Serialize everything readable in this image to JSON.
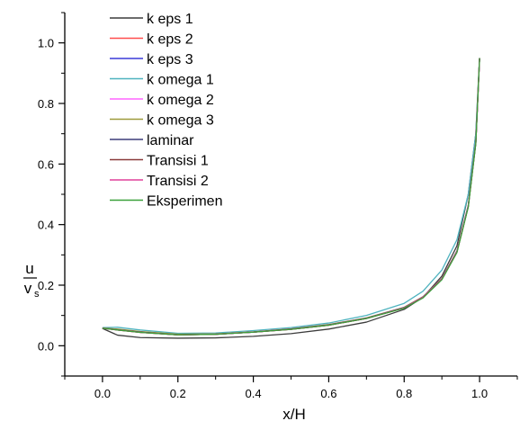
{
  "chart_data": {
    "type": "line",
    "xlabel": "x/H",
    "ylabel": {
      "numerator": "u",
      "denominator_base": "v",
      "denominator_sub": "s"
    },
    "xlim": [
      -0.1,
      1.1
    ],
    "ylim": [
      -0.1,
      1.1
    ],
    "xticks": [
      0.0,
      0.2,
      0.4,
      0.6,
      0.8,
      1.0
    ],
    "yticks": [
      0.0,
      0.2,
      0.4,
      0.6,
      0.8,
      1.0
    ],
    "xtick_labels": [
      "0.0",
      "0.2",
      "0.4",
      "0.6",
      "0.8",
      "1.0"
    ],
    "ytick_labels": [
      "0.0",
      "0.2",
      "0.4",
      "0.6",
      "0.8",
      "1.0"
    ],
    "grid": false,
    "legend_position": "top-left",
    "series": [
      {
        "name": "k eps 1",
        "color": "#3c3c3c",
        "x": [
          0.0,
          0.04,
          0.1,
          0.2,
          0.3,
          0.4,
          0.5,
          0.6,
          0.7,
          0.8,
          0.85,
          0.9,
          0.94,
          0.97,
          0.99,
          1.0
        ],
        "y": [
          0.057,
          0.035,
          0.027,
          0.025,
          0.026,
          0.031,
          0.04,
          0.055,
          0.078,
          0.12,
          0.16,
          0.23,
          0.33,
          0.5,
          0.7,
          0.95
        ]
      },
      {
        "name": "k eps 2",
        "color": "#ff4d4d",
        "x": [
          0.0,
          0.04,
          0.1,
          0.2,
          0.3,
          0.4,
          0.5,
          0.6,
          0.7,
          0.8,
          0.85,
          0.9,
          0.94,
          0.97,
          0.99,
          1.0
        ],
        "y": [
          0.058,
          0.052,
          0.044,
          0.036,
          0.038,
          0.045,
          0.054,
          0.068,
          0.09,
          0.125,
          0.16,
          0.22,
          0.31,
          0.46,
          0.67,
          0.95
        ]
      },
      {
        "name": "k eps 3",
        "color": "#3a3ad8",
        "x": [
          0.0,
          0.04,
          0.1,
          0.2,
          0.3,
          0.4,
          0.5,
          0.6,
          0.7,
          0.8,
          0.85,
          0.9,
          0.94,
          0.97,
          0.99,
          1.0
        ],
        "y": [
          0.058,
          0.053,
          0.045,
          0.037,
          0.038,
          0.045,
          0.055,
          0.069,
          0.091,
          0.126,
          0.161,
          0.221,
          0.312,
          0.462,
          0.672,
          0.95
        ]
      },
      {
        "name": "k omega 1",
        "color": "#4fb3bf",
        "x": [
          0.0,
          0.04,
          0.1,
          0.2,
          0.3,
          0.4,
          0.5,
          0.6,
          0.7,
          0.8,
          0.85,
          0.9,
          0.94,
          0.97,
          0.99,
          1.0
        ],
        "y": [
          0.06,
          0.061,
          0.052,
          0.041,
          0.042,
          0.05,
          0.06,
          0.075,
          0.1,
          0.14,
          0.18,
          0.25,
          0.35,
          0.5,
          0.7,
          0.95
        ]
      },
      {
        "name": "k omega 2",
        "color": "#ff66ff",
        "x": [
          0.0,
          0.04,
          0.1,
          0.2,
          0.3,
          0.4,
          0.5,
          0.6,
          0.7,
          0.8,
          0.85,
          0.9,
          0.94,
          0.97,
          0.99,
          1.0
        ],
        "y": [
          0.059,
          0.054,
          0.046,
          0.037,
          0.039,
          0.046,
          0.056,
          0.07,
          0.092,
          0.127,
          0.162,
          0.222,
          0.313,
          0.463,
          0.673,
          0.95
        ]
      },
      {
        "name": "k omega 3",
        "color": "#9e9a3a",
        "x": [
          0.0,
          0.04,
          0.1,
          0.2,
          0.3,
          0.4,
          0.5,
          0.6,
          0.7,
          0.8,
          0.85,
          0.9,
          0.94,
          0.97,
          0.99,
          1.0
        ],
        "y": [
          0.059,
          0.055,
          0.047,
          0.038,
          0.039,
          0.046,
          0.056,
          0.07,
          0.092,
          0.127,
          0.162,
          0.222,
          0.313,
          0.463,
          0.673,
          0.95
        ]
      },
      {
        "name": "laminar",
        "color": "#3d3d7a",
        "x": [
          0.0,
          0.04,
          0.1,
          0.2,
          0.3,
          0.4,
          0.5,
          0.6,
          0.7,
          0.8,
          0.85,
          0.9,
          0.94,
          0.97,
          0.99,
          1.0
        ],
        "y": [
          0.058,
          0.053,
          0.045,
          0.036,
          0.038,
          0.045,
          0.055,
          0.069,
          0.091,
          0.126,
          0.161,
          0.221,
          0.312,
          0.462,
          0.672,
          0.95
        ]
      },
      {
        "name": "Transisi 1",
        "color": "#8a3a3a",
        "x": [
          0.0,
          0.04,
          0.1,
          0.2,
          0.3,
          0.4,
          0.5,
          0.6,
          0.7,
          0.8,
          0.85,
          0.9,
          0.94,
          0.97,
          0.99,
          1.0
        ],
        "y": [
          0.058,
          0.052,
          0.044,
          0.036,
          0.038,
          0.045,
          0.054,
          0.068,
          0.09,
          0.125,
          0.16,
          0.22,
          0.31,
          0.46,
          0.67,
          0.95
        ]
      },
      {
        "name": "Transisi 2",
        "color": "#e0409a",
        "x": [
          0.0,
          0.04,
          0.1,
          0.2,
          0.3,
          0.4,
          0.5,
          0.6,
          0.7,
          0.8,
          0.85,
          0.9,
          0.94,
          0.97,
          0.99,
          1.0
        ],
        "y": [
          0.058,
          0.052,
          0.044,
          0.036,
          0.038,
          0.045,
          0.054,
          0.068,
          0.09,
          0.125,
          0.16,
          0.22,
          0.31,
          0.46,
          0.67,
          0.95
        ]
      },
      {
        "name": "Eksperimen",
        "color": "#3aa03a",
        "x": [
          0.0,
          0.04,
          0.1,
          0.2,
          0.3,
          0.4,
          0.5,
          0.6,
          0.7,
          0.8,
          0.85,
          0.9,
          0.94,
          0.97,
          0.99,
          1.0
        ],
        "y": [
          0.058,
          0.052,
          0.044,
          0.036,
          0.038,
          0.045,
          0.054,
          0.068,
          0.09,
          0.124,
          0.158,
          0.218,
          0.308,
          0.458,
          0.668,
          0.95
        ]
      }
    ]
  }
}
